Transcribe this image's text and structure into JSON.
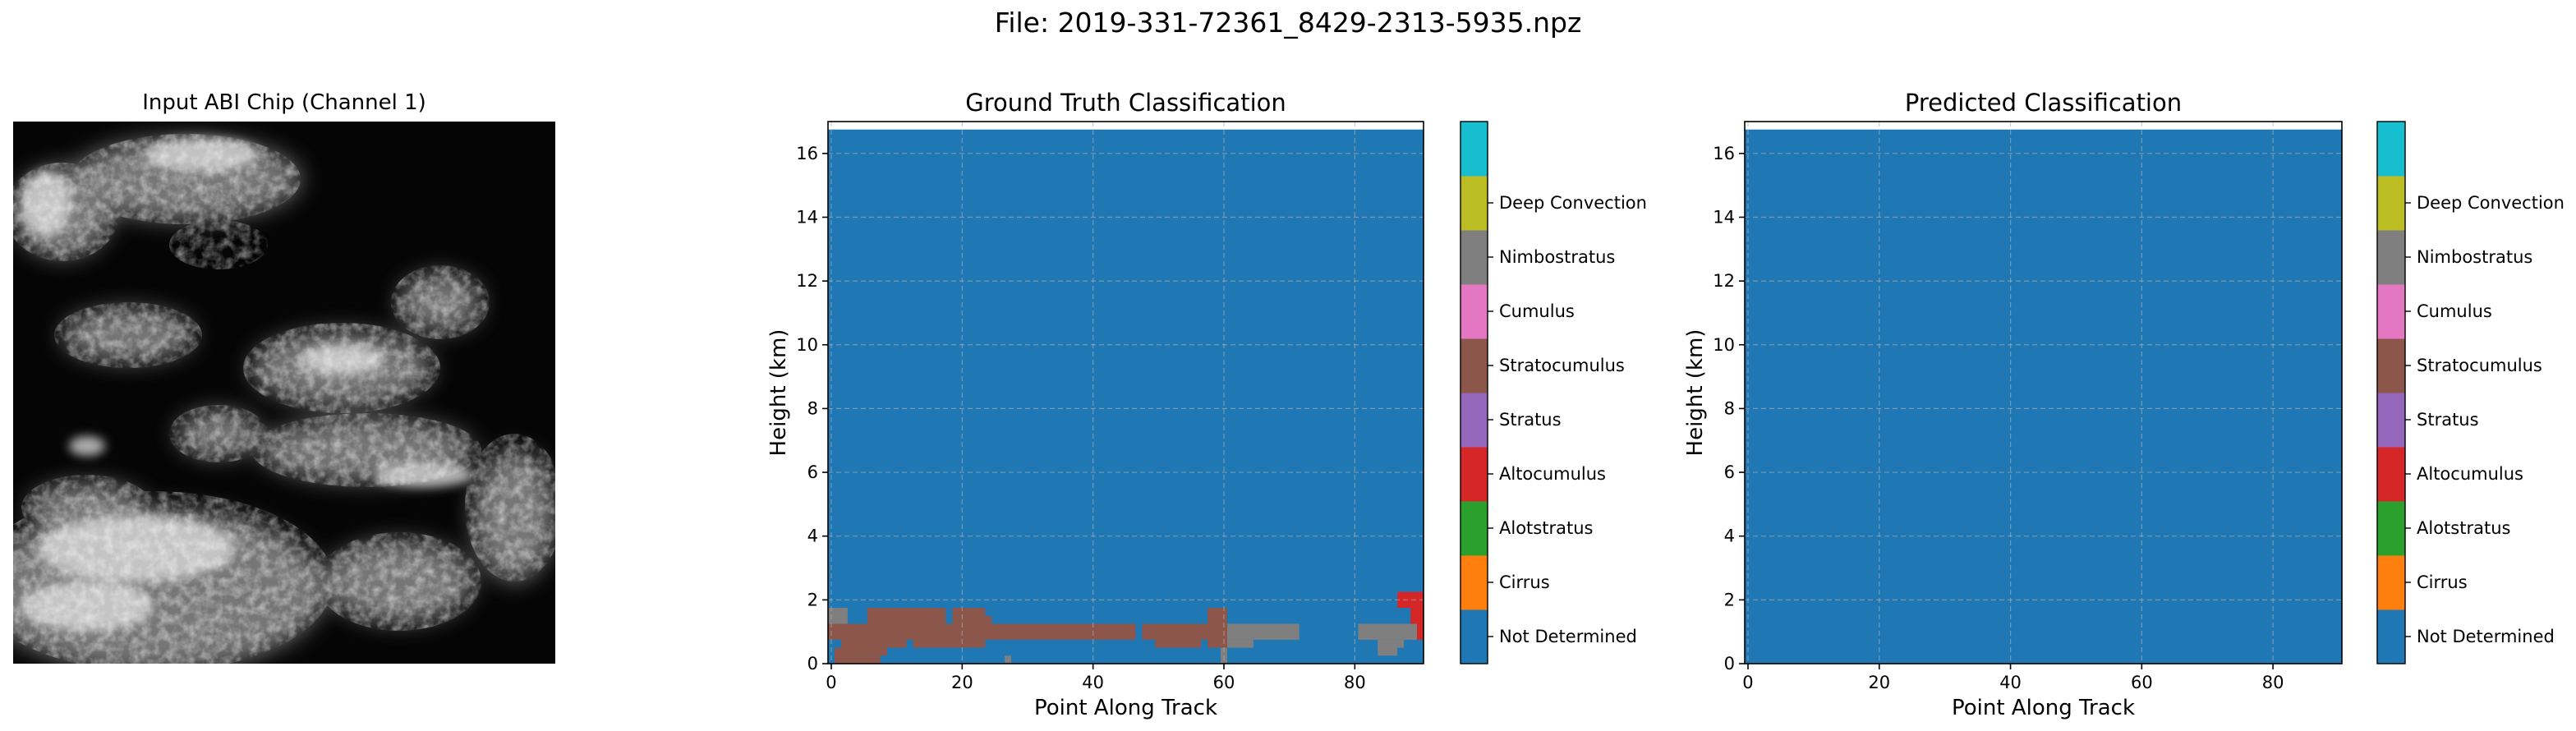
{
  "suptitle": "File: 2019-331-72361_8429-2313-5935.npz",
  "chip_panel": {
    "title": "Input ABI Chip (Channel 1)"
  },
  "colors": {
    "Not Determined": "#1f77b4",
    "Cirrus": "#ff7f0e",
    "Alotstratus": "#2ca02c",
    "Altocumulus": "#d62728",
    "Stratus": "#9467bd",
    "Stratocumulus": "#8c564b",
    "Cumulus": "#e377c2",
    "Nimbostratus": "#7f7f7f",
    "Deep Convection": "#bcbd22",
    "top": "#17becf"
  },
  "chart_data": [
    {
      "type": "heatmap",
      "title": "Ground Truth Classification",
      "xlabel": "Point Along Track",
      "ylabel": "Height (km)",
      "xlim": [
        -0.5,
        90.5
      ],
      "ylim": [
        0,
        17
      ],
      "data_top": 16.75,
      "xticks": [
        0,
        20,
        40,
        60,
        80
      ],
      "yticks": [
        0,
        2,
        4,
        6,
        8,
        10,
        12,
        14,
        16
      ],
      "grid": true,
      "background_class": "Not Determined",
      "colorbar_labels": [
        "Not Determined",
        "Cirrus",
        "Alotstratus",
        "Altocumulus",
        "Stratus",
        "Stratocumulus",
        "Cumulus",
        "Nimbostratus",
        "Deep Convection"
      ],
      "colorbar_colors": [
        "#1f77b4",
        "#ff7f0e",
        "#2ca02c",
        "#d62728",
        "#9467bd",
        "#8c564b",
        "#e377c2",
        "#7f7f7f",
        "#bcbd22",
        "#17becf"
      ],
      "cells": [
        {
          "x0": 0.5,
          "x1": 2.5,
          "y0": 0.0,
          "y1": 0.5,
          "class": "Stratocumulus"
        },
        {
          "x0": 2.5,
          "x1": 7.5,
          "y0": 0.0,
          "y1": 0.25,
          "class": "Stratocumulus"
        },
        {
          "x0": 1.5,
          "x1": 8.5,
          "y0": 0.25,
          "y1": 0.75,
          "class": "Stratocumulus"
        },
        {
          "x0": -0.5,
          "x1": 46.5,
          "y0": 0.75,
          "y1": 1.25,
          "class": "Stratocumulus"
        },
        {
          "x0": 5.5,
          "x1": 11.5,
          "y0": 0.5,
          "y1": 0.75,
          "class": "Stratocumulus"
        },
        {
          "x0": 12.5,
          "x1": 23.5,
          "y0": 0.5,
          "y1": 0.75,
          "class": "Stratocumulus"
        },
        {
          "x0": 5.5,
          "x1": 17.5,
          "y0": 1.25,
          "y1": 1.75,
          "class": "Stratocumulus"
        },
        {
          "x0": 18.5,
          "x1": 23.5,
          "y0": 1.25,
          "y1": 1.75,
          "class": "Stratocumulus"
        },
        {
          "x0": 23.5,
          "x1": 24.5,
          "y0": 1.25,
          "y1": 1.5,
          "class": "Stratocumulus"
        },
        {
          "x0": 47.5,
          "x1": 58.5,
          "y0": 0.75,
          "y1": 1.25,
          "class": "Stratocumulus"
        },
        {
          "x0": 49.5,
          "x1": 56.5,
          "y0": 0.5,
          "y1": 0.75,
          "class": "Stratocumulus"
        },
        {
          "x0": 57.5,
          "x1": 60.5,
          "y0": 0.5,
          "y1": 1.75,
          "class": "Stratocumulus"
        },
        {
          "x0": 60.5,
          "x1": 71.5,
          "y0": 0.75,
          "y1": 1.25,
          "class": "Nimbostratus"
        },
        {
          "x0": 60.5,
          "x1": 64.5,
          "y0": 0.5,
          "y1": 0.75,
          "class": "Nimbostratus"
        },
        {
          "x0": 59.5,
          "x1": 60.5,
          "y0": 0.0,
          "y1": 0.5,
          "class": "Nimbostratus"
        },
        {
          "x0": 80.5,
          "x1": 89.5,
          "y0": 0.75,
          "y1": 1.25,
          "class": "Nimbostratus"
        },
        {
          "x0": 83.5,
          "x1": 86.5,
          "y0": 0.25,
          "y1": 0.75,
          "class": "Nimbostratus"
        },
        {
          "x0": 86.5,
          "x1": 87.5,
          "y0": 0.5,
          "y1": 0.75,
          "class": "Nimbostratus"
        },
        {
          "x0": -0.5,
          "x1": 2.5,
          "y0": 1.25,
          "y1": 1.75,
          "class": "Nimbostratus"
        },
        {
          "x0": 26.5,
          "x1": 27.5,
          "y0": 0.0,
          "y1": 0.25,
          "class": "Nimbostratus"
        },
        {
          "x0": 86.5,
          "x1": 90.5,
          "y0": 1.75,
          "y1": 2.25,
          "class": "Altocumulus"
        },
        {
          "x0": 88.5,
          "x1": 90.5,
          "y0": 1.25,
          "y1": 1.75,
          "class": "Altocumulus"
        },
        {
          "x0": 89.5,
          "x1": 90.5,
          "y0": 0.75,
          "y1": 1.25,
          "class": "Altocumulus"
        }
      ]
    },
    {
      "type": "heatmap",
      "title": "Predicted Classification",
      "xlabel": "Point Along Track",
      "ylabel": "Height (km)",
      "xlim": [
        -0.5,
        90.5
      ],
      "ylim": [
        0,
        17
      ],
      "data_top": 16.75,
      "xticks": [
        0,
        20,
        40,
        60,
        80
      ],
      "yticks": [
        0,
        2,
        4,
        6,
        8,
        10,
        12,
        14,
        16
      ],
      "grid": true,
      "background_class": "Not Determined",
      "colorbar_labels": [
        "Not Determined",
        "Cirrus",
        "Alotstratus",
        "Altocumulus",
        "Stratus",
        "Stratocumulus",
        "Cumulus",
        "Nimbostratus",
        "Deep Convection"
      ],
      "colorbar_colors": [
        "#1f77b4",
        "#ff7f0e",
        "#2ca02c",
        "#d62728",
        "#9467bd",
        "#8c564b",
        "#e377c2",
        "#7f7f7f",
        "#bcbd22",
        "#17becf"
      ],
      "cells": []
    }
  ]
}
